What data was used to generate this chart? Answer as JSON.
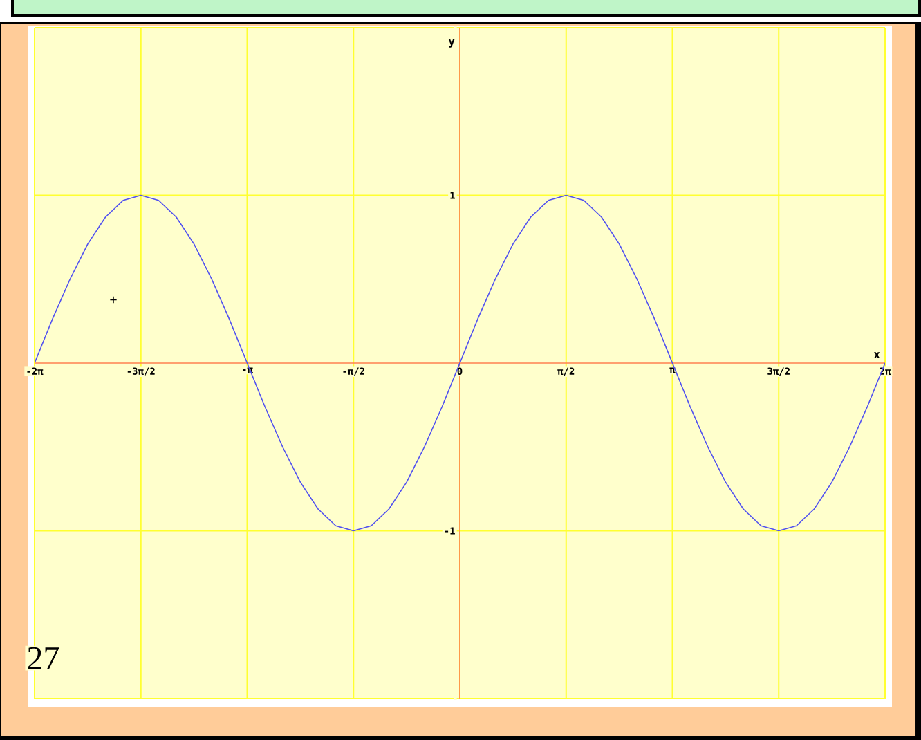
{
  "chart_data": {
    "type": "line",
    "xlabel": "x",
    "ylabel": "y",
    "x": [
      -6.2832,
      -6.0214,
      -5.7596,
      -5.4978,
      -5.236,
      -4.9742,
      -4.7124,
      -4.4506,
      -4.1888,
      -3.927,
      -3.6652,
      -3.4034,
      -3.1416,
      -2.8798,
      -2.618,
      -2.3562,
      -2.0944,
      -1.8326,
      -1.5708,
      -1.309,
      -1.0472,
      -0.7854,
      -0.5236,
      -0.2618,
      0,
      0.2618,
      0.5236,
      0.7854,
      1.0472,
      1.309,
      1.5708,
      1.8326,
      2.0944,
      2.3562,
      2.618,
      2.8798,
      3.1416,
      3.4034,
      3.6652,
      3.927,
      4.1888,
      4.4506,
      4.7124,
      4.9742,
      5.236,
      5.4978,
      5.7596,
      6.0214,
      6.2832
    ],
    "series": [
      {
        "color": "#5050f0",
        "values": [
          0,
          0.26,
          0.5,
          0.71,
          0.87,
          0.97,
          1,
          0.97,
          0.87,
          0.71,
          0.5,
          0.26,
          0,
          -0.26,
          -0.5,
          -0.71,
          -0.87,
          -0.97,
          -1,
          -0.97,
          -0.87,
          -0.71,
          -0.5,
          -0.26,
          0,
          0.26,
          0.5,
          0.71,
          0.87,
          0.97,
          1,
          0.97,
          0.87,
          0.71,
          0.5,
          0.26,
          0,
          -0.26,
          -0.5,
          -0.71,
          -0.87,
          -0.97,
          -1,
          -0.97,
          -0.87,
          -0.71,
          -0.5,
          -0.26,
          0
        ]
      }
    ],
    "xlim": [
      -6.2832,
      6.2832
    ],
    "ylim": [
      -2,
      2
    ],
    "xticks": [
      {
        "value": -6.2832,
        "label": "-2π"
      },
      {
        "value": -4.7124,
        "label": "-3π/2"
      },
      {
        "value": -3.1416,
        "label": "-π"
      },
      {
        "value": -1.5708,
        "label": "-π/2"
      },
      {
        "value": 0,
        "label": "0"
      },
      {
        "value": 1.5708,
        "label": "π/2"
      },
      {
        "value": 3.1416,
        "label": "π"
      },
      {
        "value": 4.7124,
        "label": "3π/2"
      },
      {
        "value": 6.2832,
        "label": "2π"
      }
    ],
    "yticks": [
      {
        "value": -2,
        "label": null
      },
      -1,
      1,
      {
        "value": 2,
        "label": null
      }
    ],
    "grid": true,
    "marker": "none",
    "line_style": "solid",
    "annotations": [
      "+",
      "27"
    ]
  }
}
